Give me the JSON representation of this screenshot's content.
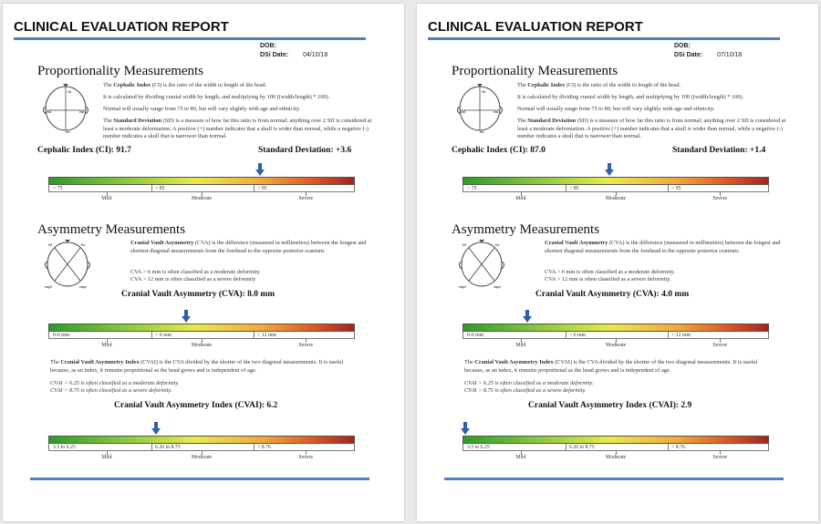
{
  "pages": [
    {
      "title": "CLINICAL EVALUATION REPORT",
      "dob_label": "DOB:",
      "date_label": "DSi Date:",
      "date_value": "04/10/18",
      "prop_heading": "Proportionality Measurements",
      "ci_p1": [
        "The ",
        "Cephalic Index",
        " (CI) is the ratio of the width to length of the head."
      ],
      "ci_p2": "It is calculated by dividing cranial width by length, and multiplying by 100 ((width/length) * 100).",
      "ci_p3": "Normal will usually range from 75 to 80, but will vary slightly with age and ethnicity.",
      "sd_p": [
        "The ",
        "Standard Deviation",
        " (SD) is a measure of how far this ratio is from normal; anything over 2 SD is considered at least a moderate deformation. A positive (+) number indicates that a skull is wider than normal, while a negative (-) number indicates a skull that is narrower than normal."
      ],
      "ci_result": "Cephalic Index (CI): 91.7",
      "sd_result": "Standard Deviation: +3.6",
      "ci_scale": {
        "labels": [
          "> 75",
          "> 85",
          "> 95"
        ],
        "categories": [
          "Mild",
          "Moderate",
          "Severe"
        ],
        "marker_fraction": 0.69
      },
      "asym_heading": "Asymmetry Measurements",
      "cva_p": [
        "",
        "Cranial Vault Asymmetry",
        " (CVA) is the difference (measured in millimeters) between the longest and shortest diagonal measurements from the forehead to the opposite posterior cranium."
      ],
      "cva_n1": "CVA > 6 mm is often classified as a moderate deformity.",
      "cva_n2": "CVA > 12 mm is often classified as a severe deformity",
      "cva_result": "Cranial Vault Asymmetry (CVA): 8.0 mm",
      "cva_scale": {
        "labels": [
          "0-6 mm",
          "> 6 mm",
          "> 12 mm"
        ],
        "categories": [
          "Mild",
          "Moderate",
          "Severe"
        ],
        "marker_fraction": 0.45
      },
      "cvai_p": [
        "The ",
        "Cranial Vault Asymmetry Index",
        " (CVAI) is the CVA divided by the shorter of the two diagonal measurements. It is useful because, as an index, it remains proportional as the head grows and is independent of age."
      ],
      "cvai_n1": "CVAI > 6.25 is often classified as a moderate deformity.",
      "cvai_n2": "CVAI > 8.75 is often classified as a severe deformity.",
      "cvai_result": "Cranial Vault Asymmetry Index (CVAI):  6.2",
      "cvai_scale": {
        "labels": [
          "3.5 to 6.25",
          "6.26 to 8.75",
          "> 8.76"
        ],
        "categories": [
          "Mild",
          "Moderate",
          "Severe"
        ],
        "marker_fraction": 0.35
      },
      "diagram1_labels": [
        "sb",
        "eul",
        "eur",
        "op"
      ],
      "diagram2_labels": [
        "ftl",
        "ftr",
        "eupl",
        "eupr"
      ]
    },
    {
      "title": "CLINICAL EVALUATION REPORT",
      "dob_label": "DOB:",
      "date_label": "DSi Date:",
      "date_value": "07/10/18",
      "prop_heading": "Proportionality Measurements",
      "ci_p1": [
        "The ",
        "Cephalic Index",
        " (CI) is the ratio of the width to length of the head."
      ],
      "ci_p2": "It is calculated by dividing cranial width by length, and multiplying by 100 ((width/length) * 100).",
      "ci_p3": "Normal will usually range from 75 to 80, but will vary slightly with age and ethnicity.",
      "sd_p": [
        "The ",
        "Standard Deviation",
        " (SD) is a measure of how far this ratio is from normal; anything over 2 SD is considered at least a moderate deformation. A positive (+) number indicates that a skull is wider than normal, while a negative (-) number indicates a skull that is narrower than normal."
      ],
      "ci_result": "Cephalic Index (CI): 87.0",
      "sd_result": "Standard Deviation: +1.4",
      "ci_scale": {
        "labels": [
          "> 75",
          "> 85",
          "> 95"
        ],
        "categories": [
          "Mild",
          "Moderate",
          "Severe"
        ],
        "marker_fraction": 0.48
      },
      "asym_heading": "Asymmetry Measurements",
      "cva_p": [
        "",
        "Cranial Vault Asymmetry",
        " (CVA) is the difference (measured in millimeters) between the longest and shortest diagonal measurements from the forehead to the opposite posterior cranium."
      ],
      "cva_n1": "CVA > 6 mm is often classified as a moderate deformity.",
      "cva_n2": "CVA > 12 mm is often classified as a severe deformity.",
      "cva_result": "Cranial Vault Asymmetry (CVA): 4.0 mm",
      "cva_scale": {
        "labels": [
          "0-6 mm",
          "> 6 mm",
          "> 12 mm"
        ],
        "categories": [
          "Mild",
          "Moderate",
          "Severe"
        ],
        "marker_fraction": 0.21
      },
      "cvai_p": [
        "The ",
        "Cranial Vault Asymmetry Index",
        " (CVAI) is the CVA divided by the shorter of the two diagonal measurements. It is useful because, as an index, it remains proportional as the head grows and is independent of age."
      ],
      "cvai_n1": "CVAI > 6.25 is often classified as a moderate deformity.",
      "cvai_n2": "CVAI > 8.75 is often classified as a severe deformity.",
      "cvai_result": "Cranial Vault Asymmetry Index (CVAI):  2.9",
      "cvai_scale": {
        "labels": [
          "3.5 to 6.25",
          "6.26 to 8.75",
          "> 8.76"
        ],
        "categories": [
          "Mild",
          "Moderate",
          "Severe"
        ],
        "marker_fraction": 0.01
      },
      "diagram1_labels": [
        "sb",
        "eul",
        "eur",
        "op"
      ],
      "diagram2_labels": [
        "ftl",
        "ftr",
        "eupl",
        "eupr"
      ]
    }
  ],
  "colors": {
    "rule": "#4f7fbf",
    "arrow": "#2f5fa8",
    "scale": [
      "#2e9a28",
      "#e8ea4a",
      "#a6221c"
    ]
  }
}
